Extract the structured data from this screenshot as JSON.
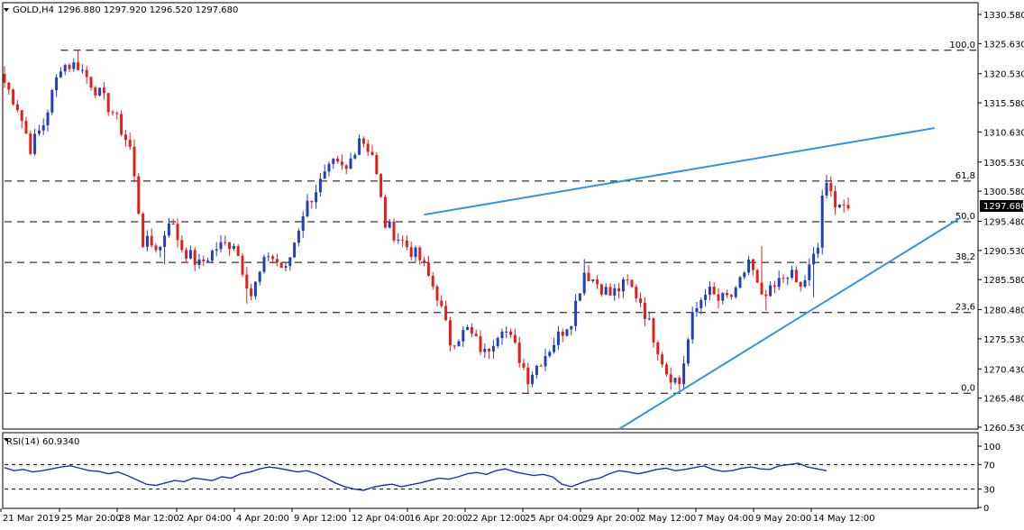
{
  "header": {
    "symbol_label": "GOLD,H4",
    "ohlc_values": "1296.880 1297.920 1296.520 1297.680",
    "last_price_label": "1297.680"
  },
  "rsi_panel": {
    "label": "RSI(14) 60.9340",
    "levels": [
      100,
      70,
      30,
      0
    ],
    "level_labels": [
      "100",
      "70",
      "30",
      "0"
    ]
  },
  "x_axis_labels": [
    "21 Mar 2019",
    "25 Mar 20:00",
    "28 Mar 12:00",
    "2 Apr 04:00",
    "4 Apr 20:00",
    "9 Apr 12:00",
    "12 Apr 04:00",
    "16 Apr 20:00",
    "22 Apr 12:00",
    "25 Apr 04:00",
    "29 Apr 20:00",
    "2 May 12:00",
    "7 May 04:00",
    "9 May 20:00",
    "14 May 12:00"
  ],
  "price_axis_labels": [
    "1330.580",
    "1325.630",
    "1320.530",
    "1315.580",
    "1310.630",
    "1305.530",
    "1300.580",
    "1295.480",
    "1290.530",
    "1285.580",
    "1280.480",
    "1275.530",
    "1270.430",
    "1265.480",
    "1260.530"
  ],
  "fibonacci": {
    "high": 1324.5,
    "low": 1266.3,
    "levels": [
      {
        "label": "100,0",
        "price": 1324.5
      },
      {
        "label": "61,8",
        "price": 1302.3
      },
      {
        "label": "50,0",
        "price": 1295.4
      },
      {
        "label": "38,2",
        "price": 1288.5
      },
      {
        "label": "23,6",
        "price": 1280.0
      },
      {
        "label": "0,0",
        "price": 1266.3
      }
    ]
  },
  "colors": {
    "bull_candle": "#1f3fbf",
    "bear_candle": "#e0201b",
    "trendline": "#2e95e0",
    "rsi_line": "#1a2fc9",
    "dashed_line": "#000000",
    "axis_text": "#000000",
    "last_price_bg": "#000000"
  },
  "chart_data": {
    "type": "candlestick",
    "symbol": "GOLD",
    "timeframe": "H4",
    "ylim": [
      1259.5,
      1332.5
    ],
    "price_path": [
      [
        0,
        1319
      ],
      [
        3,
        1315
      ],
      [
        6,
        1308
      ],
      [
        9,
        1312
      ],
      [
        13,
        1322
      ],
      [
        17,
        1322
      ],
      [
        22,
        1317
      ],
      [
        25,
        1314
      ],
      [
        29,
        1308
      ],
      [
        32,
        1292
      ],
      [
        36,
        1291
      ],
      [
        38,
        1296
      ],
      [
        41,
        1291
      ],
      [
        45,
        1288
      ],
      [
        49,
        1291
      ],
      [
        53,
        1292
      ],
      [
        57,
        1283
      ],
      [
        61,
        1290
      ],
      [
        65,
        1287
      ],
      [
        69,
        1297
      ],
      [
        72,
        1301
      ],
      [
        76,
        1305
      ],
      [
        79,
        1304
      ],
      [
        82,
        1310
      ],
      [
        85,
        1307
      ],
      [
        88,
        1295
      ],
      [
        92,
        1292
      ],
      [
        96,
        1289
      ],
      [
        100,
        1283
      ],
      [
        103,
        1275
      ],
      [
        107,
        1277
      ],
      [
        111,
        1273
      ],
      [
        115,
        1278
      ],
      [
        118,
        1274
      ],
      [
        121,
        1269
      ],
      [
        124,
        1272
      ],
      [
        127,
        1275
      ],
      [
        131,
        1279
      ],
      [
        134,
        1287
      ],
      [
        137,
        1285
      ],
      [
        140,
        1283
      ],
      [
        144,
        1285
      ],
      [
        147,
        1282
      ],
      [
        150,
        1276
      ],
      [
        153,
        1270
      ],
      [
        156,
        1268
      ],
      [
        159,
        1279
      ],
      [
        162,
        1284
      ],
      [
        165,
        1282
      ],
      [
        169,
        1283
      ],
      [
        172,
        1289
      ],
      [
        175,
        1282
      ],
      [
        178,
        1284
      ],
      [
        181,
        1287
      ],
      [
        184,
        1284
      ],
      [
        188,
        1291
      ],
      [
        189,
        1300
      ],
      [
        190,
        1301
      ],
      [
        192,
        1299
      ],
      [
        195,
        1298
      ]
    ],
    "lows": [
      {
        "i": 17,
        "p": 1321.5
      },
      {
        "i": 37,
        "p": 1288.2
      },
      {
        "i": 56,
        "p": 1281.5
      },
      {
        "i": 121,
        "p": 1266.3
      },
      {
        "i": 156,
        "p": 1266.6
      },
      {
        "i": 176,
        "p": 1280.3
      },
      {
        "i": 187,
        "p": 1282.6
      }
    ],
    "highs": [
      {
        "i": 17,
        "p": 1324.5
      },
      {
        "i": 82,
        "p": 1310.2
      },
      {
        "i": 134,
        "p": 1289.1
      },
      {
        "i": 175,
        "p": 1291.3
      },
      {
        "i": 190,
        "p": 1303.4
      }
    ],
    "trendlines": [
      {
        "name": "upper",
        "from": [
          1296.6,
          97
        ],
        "to": [
          1311.3,
          215
        ]
      },
      {
        "name": "lower",
        "from": [
          1260.2,
          142
        ],
        "to": [
          1296.1,
          221
        ]
      }
    ],
    "rsi": {
      "period": 14,
      "last_value": 60.934,
      "levels": [
        70,
        30
      ],
      "range": [
        0,
        100
      ],
      "values": [
        65,
        60,
        62,
        58,
        60,
        63,
        66,
        68,
        64,
        60,
        59,
        55,
        58,
        52,
        45,
        38,
        36,
        40,
        44,
        42,
        48,
        46,
        44,
        50,
        48,
        55,
        58,
        63,
        66,
        64,
        61,
        58,
        60,
        55,
        48,
        40,
        34,
        30,
        28,
        33,
        36,
        38,
        34,
        37,
        40,
        44,
        48,
        46,
        50,
        55,
        57,
        54,
        60,
        63,
        58,
        55,
        52,
        54,
        50,
        38,
        34,
        40,
        45,
        48,
        55,
        60,
        58,
        55,
        58,
        62,
        64,
        60,
        62,
        65,
        68,
        62,
        59,
        60,
        64,
        66,
        63,
        62,
        68,
        70,
        72,
        66,
        63,
        60
      ]
    }
  }
}
